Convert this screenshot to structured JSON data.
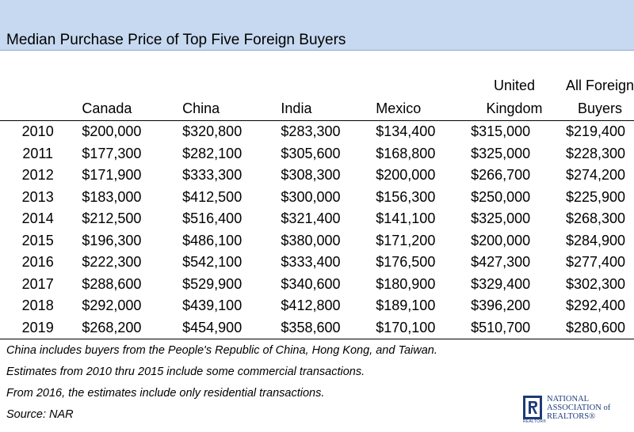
{
  "chart_data": {
    "type": "table",
    "title": "Median Purchase Price of Top Five Foreign Buyers",
    "columns": [
      {
        "line1": "",
        "line2": "Canada"
      },
      {
        "line1": "",
        "line2": "China"
      },
      {
        "line1": "",
        "line2": "India"
      },
      {
        "line1": "",
        "line2": "Mexico"
      },
      {
        "line1": "United",
        "line2": "Kingdom"
      },
      {
        "line1": "All Foreign",
        "line2": "Buyers"
      }
    ],
    "rows": [
      {
        "year": "2010",
        "values": [
          "$200,000",
          "$320,800",
          "$283,300",
          "$134,400",
          "$315,000",
          "$219,400"
        ]
      },
      {
        "year": "2011",
        "values": [
          "$177,300",
          "$282,100",
          "$305,600",
          "$168,800",
          "$325,000",
          "$228,300"
        ]
      },
      {
        "year": "2012",
        "values": [
          "$171,900",
          "$333,300",
          "$308,300",
          "$200,000",
          "$266,700",
          "$274,200"
        ]
      },
      {
        "year": "2013",
        "values": [
          "$183,000",
          "$412,500",
          "$300,000",
          "$156,300",
          "$250,000",
          "$225,900"
        ]
      },
      {
        "year": "2014",
        "values": [
          "$212,500",
          "$516,400",
          "$321,400",
          "$141,100",
          "$325,000",
          "$268,300"
        ]
      },
      {
        "year": "2015",
        "values": [
          "$196,300",
          "$486,100",
          "$380,000",
          "$171,200",
          "$200,000",
          "$284,900"
        ]
      },
      {
        "year": "2016",
        "values": [
          "$222,300",
          "$542,100",
          "$333,400",
          "$176,500",
          "$427,300",
          "$277,400"
        ]
      },
      {
        "year": "2017",
        "values": [
          "$288,600",
          "$529,900",
          "$340,600",
          "$180,900",
          "$329,400",
          "$302,300"
        ]
      },
      {
        "year": "2018",
        "values": [
          "$292,000",
          "$439,100",
          "$412,800",
          "$189,100",
          "$396,200",
          "$292,400"
        ]
      },
      {
        "year": "2019",
        "values": [
          "$268,200",
          "$454,900",
          "$358,600",
          "$170,100",
          "$510,700",
          "$280,600"
        ]
      }
    ],
    "notes": [
      "China includes buyers from the People's Republic of China, Hong Kong, and Taiwan.",
      "Estimates from 2010 thru 2015 include some commercial transactions.",
      "From 2016, the estimates include only residential transactions.",
      "Source: NAR"
    ]
  },
  "logo": {
    "line1": "NATIONAL",
    "line2": "ASSOCIATION of",
    "line3": "REALTORS®",
    "mark_caption": "REALTOR®",
    "brand_color": "#1f3a7a"
  },
  "colors": {
    "title_band": "#c6d9f0"
  }
}
